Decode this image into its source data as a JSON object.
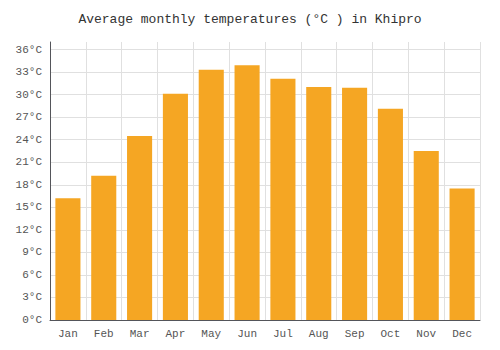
{
  "chart_data": {
    "type": "bar",
    "title": "Average monthly temperatures (°C ) in Khipro",
    "categories": [
      "Jan",
      "Feb",
      "Mar",
      "Apr",
      "May",
      "Jun",
      "Jul",
      "Aug",
      "Sep",
      "Oct",
      "Nov",
      "Dec"
    ],
    "values": [
      16.2,
      19.2,
      24.5,
      30.1,
      33.3,
      33.9,
      32.1,
      31.0,
      30.9,
      28.1,
      22.5,
      17.5
    ],
    "color": "#F5A623",
    "ylim": [
      0,
      37
    ],
    "yticks": [
      {
        "value": 0,
        "label": "0°C"
      },
      {
        "value": 3,
        "label": "3°C"
      },
      {
        "value": 6,
        "label": "6°C"
      },
      {
        "value": 9,
        "label": "9°C"
      },
      {
        "value": 12,
        "label": "12°C"
      },
      {
        "value": 15,
        "label": "15°C"
      },
      {
        "value": 18,
        "label": "18°C"
      },
      {
        "value": 21,
        "label": "21°C"
      },
      {
        "value": 24,
        "label": "24°C"
      },
      {
        "value": 27,
        "label": "27°C"
      },
      {
        "value": 30,
        "label": "30°C"
      },
      {
        "value": 33,
        "label": "33°C"
      },
      {
        "value": 36,
        "label": "36°C"
      }
    ],
    "grid": true
  }
}
